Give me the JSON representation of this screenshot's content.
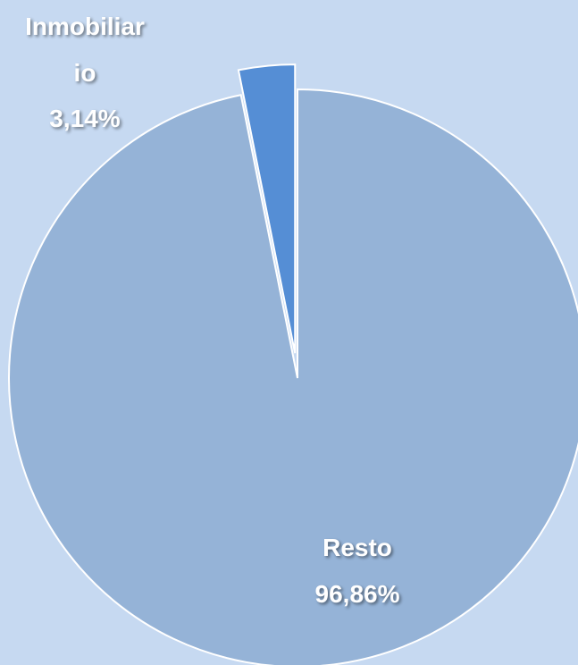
{
  "chart_data": {
    "type": "pie",
    "categories": [
      "Inmobiliario",
      "Resto"
    ],
    "values": [
      3.14,
      96.86
    ],
    "value_labels": [
      "3,14%",
      "96,86%"
    ],
    "colors": [
      "#558ed5",
      "#95b3d7"
    ]
  }
}
